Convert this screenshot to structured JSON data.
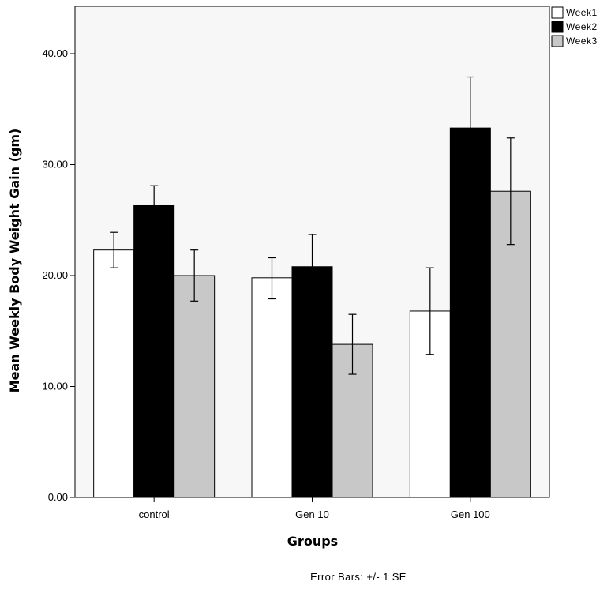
{
  "chart_data": {
    "type": "bar",
    "title": "",
    "xlabel": "Groups",
    "ylabel": "Mean Weekly Body Weight Gain (gm)",
    "categories": [
      "control",
      "Gen 10",
      "Gen 100"
    ],
    "ylim": [
      0,
      45
    ],
    "yticks": [
      0,
      10,
      20,
      30,
      40
    ],
    "ytick_labels": [
      "0.00",
      "10.00",
      "20.00",
      "30.00",
      "40.00"
    ],
    "grid": false,
    "legend_position": "top-right",
    "series": [
      {
        "name": "Week1",
        "color": "#ffffff",
        "values": [
          22.3,
          19.8,
          16.8
        ],
        "error_low": [
          20.7,
          17.9,
          12.9
        ],
        "error_high": [
          23.9,
          21.6,
          20.7
        ]
      },
      {
        "name": "Week2",
        "color": "#000000",
        "values": [
          26.3,
          20.8,
          33.3
        ],
        "error_low": [
          24.5,
          17.9,
          28.7
        ],
        "error_high": [
          28.1,
          23.7,
          37.9
        ]
      },
      {
        "name": "Week3",
        "color": "#c8c8c8",
        "values": [
          20.0,
          13.8,
          27.6
        ],
        "error_low": [
          17.7,
          11.1,
          22.8
        ],
        "error_high": [
          22.3,
          16.5,
          32.4
        ]
      }
    ],
    "footnote": "Error Bars: +/- 1 SE"
  }
}
